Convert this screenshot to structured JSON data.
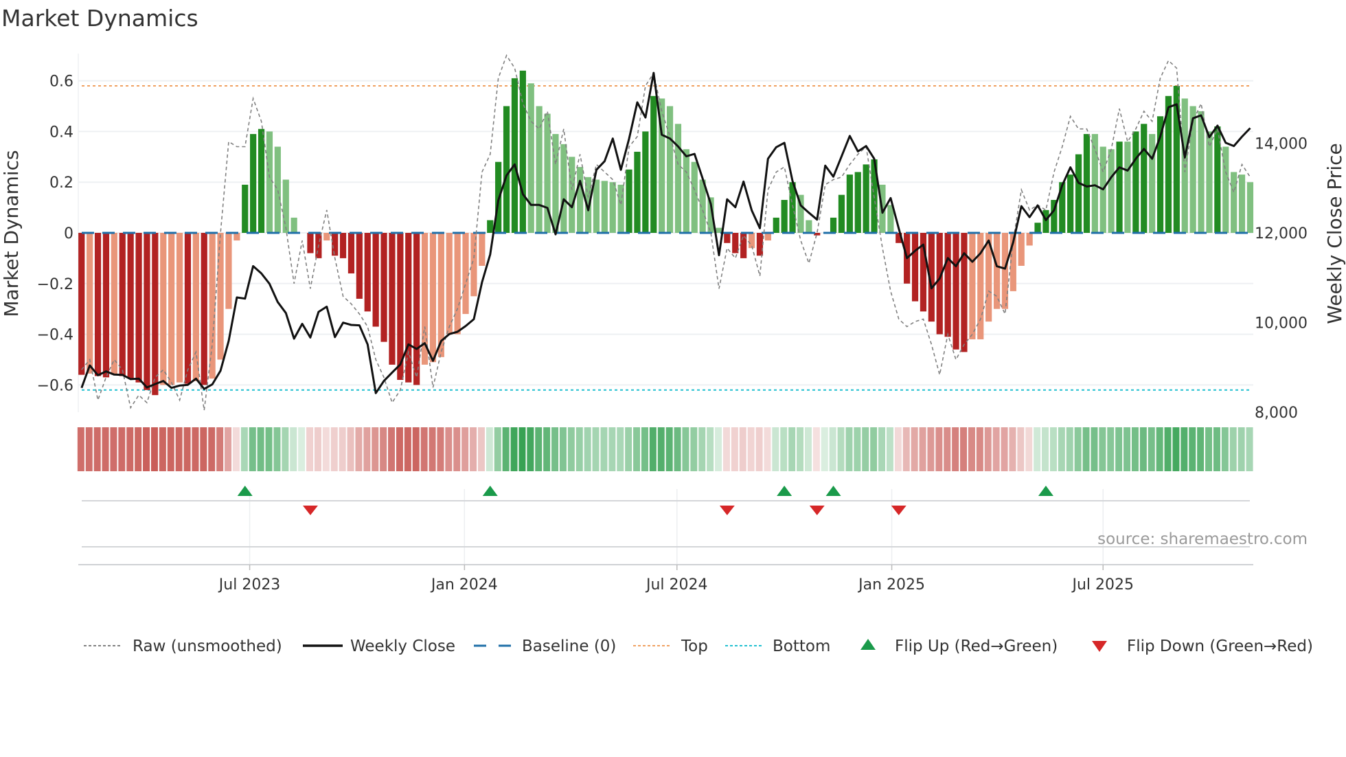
{
  "title": "Market Dynamics",
  "source": "source: sharemaestro.com",
  "colors": {
    "dark_red": "#b22222",
    "light_red": "#e9967a",
    "dark_green": "#228b22",
    "light_green": "#80c080",
    "heat_red": "#c85a55",
    "heat_green": "#33a050",
    "raw": "#808080",
    "close": "#111111",
    "baseline": "#1f6fa8",
    "top": "#f0a060",
    "bottom": "#20c0d0",
    "flip_up": "#1a9a4a",
    "flip_down": "#d62728",
    "grid": "#eef0f3"
  },
  "chart_data": {
    "type": "bar",
    "title": "Market Dynamics",
    "ylabel": "Market Dynamics",
    "y2label": "Weekly Close Price",
    "ylim": [
      -0.7,
      0.7
    ],
    "y2lim": [
      8000,
      16000
    ],
    "grid": true,
    "legend_position": "bottom",
    "yticks": [
      {
        "value": 0.6,
        "label": "0.6"
      },
      {
        "value": 0.4,
        "label": "0.4"
      },
      {
        "value": 0.2,
        "label": "0.2"
      },
      {
        "value": 0,
        "label": "0"
      },
      {
        "value": -0.2,
        "label": "−0.2"
      },
      {
        "value": -0.4,
        "label": "−0.4"
      },
      {
        "value": -0.6,
        "label": "−0.6"
      }
    ],
    "y2ticks": [
      {
        "value": 14000,
        "label": "14,000"
      },
      {
        "value": 12000,
        "label": "12,000"
      },
      {
        "value": 10000,
        "label": "10,000"
      },
      {
        "value": 8000,
        "label": "8,000"
      }
    ],
    "xticks": [
      {
        "date": "2023-07-01",
        "label": "Jul 2023"
      },
      {
        "date": "2024-01-01",
        "label": "Jan 2024"
      },
      {
        "date": "2024-07-01",
        "label": "Jul 2024"
      },
      {
        "date": "2025-01-01",
        "label": "Jan 2025"
      },
      {
        "date": "2025-07-01",
        "label": "Jul 2025"
      }
    ],
    "x_start": "2023-02-07",
    "x_step_days": 7,
    "baseline": 0,
    "top": 0.58,
    "bottom": -0.62,
    "series": [
      {
        "name": "Market Dynamics",
        "values": [
          -0.56,
          -0.555,
          -0.565,
          -0.57,
          -0.56,
          -0.565,
          -0.575,
          -0.59,
          -0.62,
          -0.64,
          -0.6,
          -0.6,
          -0.59,
          -0.595,
          -0.585,
          -0.6,
          -0.575,
          -0.5,
          -0.3,
          -0.03,
          0.19,
          0.39,
          0.41,
          0.4,
          0.34,
          0.21,
          0.06,
          0.0,
          -0.08,
          -0.1,
          -0.03,
          -0.09,
          -0.1,
          -0.16,
          -0.26,
          -0.31,
          -0.37,
          -0.43,
          -0.52,
          -0.58,
          -0.59,
          -0.6,
          -0.52,
          -0.51,
          -0.49,
          -0.4,
          -0.4,
          -0.32,
          -0.25,
          -0.13,
          0.05,
          0.28,
          0.5,
          0.61,
          0.64,
          0.59,
          0.5,
          0.47,
          0.39,
          0.35,
          0.3,
          0.26,
          0.22,
          0.21,
          0.205,
          0.2,
          0.19,
          0.25,
          0.32,
          0.4,
          0.54,
          0.53,
          0.5,
          0.43,
          0.33,
          0.28,
          0.21,
          0.14,
          0.02,
          -0.04,
          -0.08,
          -0.1,
          -0.06,
          -0.09,
          -0.03,
          0.06,
          0.13,
          0.2,
          0.15,
          0.05,
          -0.01,
          0.0,
          0.06,
          0.15,
          0.23,
          0.24,
          0.27,
          0.29,
          0.19,
          0.11,
          -0.04,
          -0.2,
          -0.27,
          -0.31,
          -0.35,
          -0.4,
          -0.41,
          -0.46,
          -0.47,
          -0.42,
          -0.42,
          -0.35,
          -0.3,
          -0.3,
          -0.23,
          -0.13,
          -0.05,
          0.04,
          0.09,
          0.13,
          0.2,
          0.23,
          0.31,
          0.39,
          0.39,
          0.34,
          0.33,
          0.36,
          0.36,
          0.4,
          0.43,
          0.39,
          0.46,
          0.54,
          0.58,
          0.53,
          0.5,
          0.48,
          0.4,
          0.42,
          0.34,
          0.24,
          0.23,
          0.2
        ]
      },
      {
        "name": "Raw (unsmoothed)",
        "values": [
          -0.54,
          -0.5,
          -0.66,
          -0.57,
          -0.5,
          -0.54,
          -0.69,
          -0.64,
          -0.67,
          -0.57,
          -0.54,
          -0.59,
          -0.66,
          -0.54,
          -0.47,
          -0.7,
          -0.44,
          0.0,
          0.36,
          0.34,
          0.34,
          0.53,
          0.44,
          0.22,
          0.17,
          0.02,
          -0.2,
          -0.03,
          -0.22,
          -0.05,
          0.09,
          -0.1,
          -0.25,
          -0.28,
          -0.32,
          -0.37,
          -0.5,
          -0.57,
          -0.67,
          -0.62,
          -0.47,
          -0.57,
          -0.37,
          -0.61,
          -0.47,
          -0.37,
          -0.3,
          -0.2,
          -0.1,
          0.24,
          0.31,
          0.61,
          0.7,
          0.65,
          0.51,
          0.44,
          0.41,
          0.48,
          0.27,
          0.41,
          0.17,
          0.31,
          0.14,
          0.27,
          0.24,
          0.21,
          0.11,
          0.34,
          0.38,
          0.58,
          0.63,
          0.48,
          0.38,
          0.27,
          0.24,
          0.17,
          0.09,
          0.0,
          -0.22,
          -0.06,
          -0.1,
          -0.01,
          -0.05,
          -0.17,
          0.17,
          0.24,
          0.26,
          0.11,
          -0.03,
          -0.12,
          0.0,
          0.19,
          0.21,
          0.22,
          0.27,
          0.31,
          0.34,
          0.14,
          -0.06,
          -0.23,
          -0.34,
          -0.37,
          -0.35,
          -0.34,
          -0.44,
          -0.56,
          -0.4,
          -0.5,
          -0.44,
          -0.4,
          -0.34,
          -0.23,
          -0.25,
          -0.32,
          -0.03,
          0.17,
          0.09,
          0.11,
          0.09,
          0.24,
          0.34,
          0.46,
          0.41,
          0.41,
          0.33,
          0.24,
          0.33,
          0.49,
          0.36,
          0.41,
          0.48,
          0.44,
          0.61,
          0.68,
          0.65,
          0.24,
          0.44,
          0.51,
          0.34,
          0.41,
          0.24,
          0.16,
          0.27,
          0.22
        ]
      },
      {
        "name": "Weekly Close",
        "values": [
          8545,
          9045,
          8825,
          8912,
          8840,
          8835,
          8739,
          8750,
          8555,
          8630,
          8698,
          8545,
          8596,
          8612,
          8750,
          8520,
          8622,
          8927,
          9590,
          10560,
          10535,
          11259,
          11096,
          10866,
          10458,
          10213,
          9642,
          9973,
          9667,
          10239,
          10356,
          9677,
          9999,
          9948,
          9938,
          9514,
          8427,
          8698,
          8887,
          9066,
          9514,
          9412,
          9540,
          9147,
          9590,
          9744,
          9795,
          9923,
          10076,
          10900,
          11519,
          12724,
          13280,
          13527,
          12862,
          12623,
          12623,
          12557,
          11968,
          12749,
          12571,
          13159,
          12504,
          13406,
          13597,
          14102,
          13406,
          14102,
          14910,
          14571,
          15567,
          14188,
          14102,
          13925,
          13706,
          13761,
          13214,
          12640,
          11502,
          12749,
          12571,
          13144,
          12504,
          12104,
          13652,
          13909,
          14007,
          13159,
          12613,
          12449,
          12296,
          13499,
          13253,
          13706,
          14161,
          13816,
          13936,
          13652,
          12449,
          12776,
          12093,
          11438,
          11600,
          11738,
          10764,
          10983,
          11438,
          11256,
          11547,
          11355,
          11547,
          11830,
          11256,
          11202,
          11792,
          12596,
          12351,
          12613,
          12285,
          12504,
          13061,
          13461,
          13116,
          13034,
          13061,
          12969,
          13242,
          13461,
          13389,
          13652,
          13871,
          13652,
          14144,
          14801,
          14867,
          13680,
          14554,
          14620,
          14133,
          14390,
          14007,
          13936,
          14144,
          14335
        ]
      }
    ],
    "flip_up_weeks": [
      21,
      51,
      87,
      93,
      119
    ],
    "flip_down_weeks": [
      29,
      80,
      91,
      101
    ],
    "legend": [
      {
        "key": "raw",
        "label": "Raw (unsmoothed)"
      },
      {
        "key": "close",
        "label": "Weekly Close"
      },
      {
        "key": "baseline",
        "label": "Baseline (0)"
      },
      {
        "key": "top",
        "label": "Top"
      },
      {
        "key": "bottom",
        "label": "Bottom"
      },
      {
        "key": "flip_up",
        "label": "Flip Up (Red→Green)"
      },
      {
        "key": "flip_down",
        "label": "Flip Down (Green→Red)"
      }
    ]
  }
}
